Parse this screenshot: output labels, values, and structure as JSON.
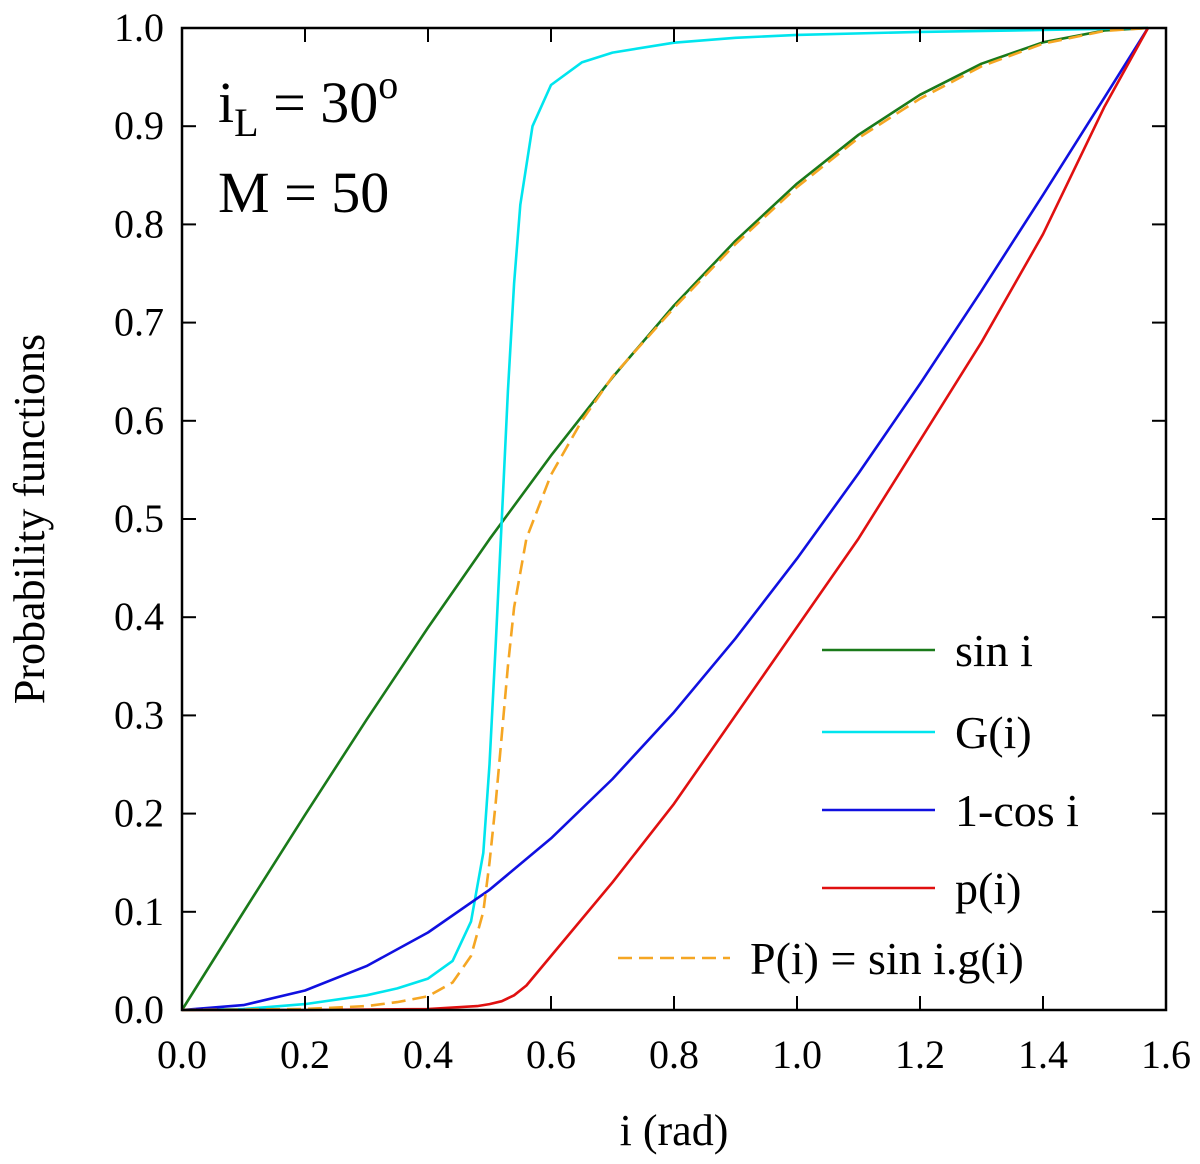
{
  "chart_data": {
    "type": "line",
    "xlabel": "i (rad)",
    "ylabel": "Probability functions",
    "xlim": [
      0.0,
      1.6
    ],
    "ylim": [
      0.0,
      1.0
    ],
    "xticks": [
      "0.0",
      "0.2",
      "0.4",
      "0.6",
      "0.8",
      "1.0",
      "1.2",
      "1.4",
      "1.6"
    ],
    "yticks": [
      "0.0",
      "0.1",
      "0.2",
      "0.3",
      "0.4",
      "0.5",
      "0.6",
      "0.7",
      "0.8",
      "0.9",
      "1.0"
    ],
    "grid": false,
    "legend_position": "bottom-right",
    "annotation": {
      "line1_main": "i",
      "line1_sub": "L",
      "line1_rest": " = 30",
      "line1_sup": "o",
      "line2": "M = 50"
    },
    "series": [
      {
        "name": "sin i",
        "color": "#1a7a1a",
        "dash": "solid",
        "x": [
          0.0,
          0.1,
          0.2,
          0.3,
          0.4,
          0.5,
          0.6,
          0.7,
          0.8,
          0.9,
          1.0,
          1.1,
          1.2,
          1.3,
          1.4,
          1.5,
          1.5708
        ],
        "y": [
          0.0,
          0.0998,
          0.1987,
          0.2955,
          0.3894,
          0.4794,
          0.5646,
          0.6442,
          0.7174,
          0.7833,
          0.8415,
          0.8912,
          0.932,
          0.9636,
          0.9854,
          0.9975,
          1.0
        ]
      },
      {
        "name": "G(i)",
        "color": "#00e5ee",
        "dash": "solid",
        "x": [
          0.0,
          0.1,
          0.2,
          0.3,
          0.35,
          0.4,
          0.44,
          0.47,
          0.49,
          0.5,
          0.51,
          0.52,
          0.53,
          0.54,
          0.55,
          0.57,
          0.6,
          0.65,
          0.7,
          0.8,
          0.9,
          1.0,
          1.2,
          1.4,
          1.5708
        ],
        "y": [
          0.0,
          0.001,
          0.006,
          0.015,
          0.022,
          0.032,
          0.05,
          0.09,
          0.16,
          0.25,
          0.37,
          0.5,
          0.63,
          0.74,
          0.82,
          0.9,
          0.942,
          0.965,
          0.975,
          0.985,
          0.99,
          0.993,
          0.996,
          0.998,
          1.0
        ]
      },
      {
        "name": "1-cos i",
        "color": "#1010e0",
        "dash": "solid",
        "x": [
          0.0,
          0.1,
          0.2,
          0.3,
          0.4,
          0.5,
          0.6,
          0.7,
          0.8,
          0.9,
          1.0,
          1.1,
          1.2,
          1.3,
          1.4,
          1.5,
          1.5708
        ],
        "y": [
          0.0,
          0.005,
          0.0199,
          0.0447,
          0.0789,
          0.1224,
          0.1747,
          0.2352,
          0.3033,
          0.3784,
          0.4597,
          0.5464,
          0.6376,
          0.7325,
          0.83,
          0.9293,
          1.0
        ]
      },
      {
        "name": "p(i)",
        "color": "#e01010",
        "dash": "solid",
        "x": [
          0.0,
          0.2,
          0.4,
          0.48,
          0.5,
          0.52,
          0.54,
          0.56,
          0.6,
          0.7,
          0.8,
          0.9,
          1.0,
          1.1,
          1.2,
          1.3,
          1.4,
          1.5,
          1.5708
        ],
        "y": [
          0.0,
          0.0,
          0.001,
          0.004,
          0.006,
          0.009,
          0.015,
          0.025,
          0.055,
          0.13,
          0.21,
          0.3,
          0.39,
          0.48,
          0.58,
          0.68,
          0.79,
          0.92,
          1.0
        ]
      },
      {
        "name": "P(i) = sin i.g(i)",
        "color": "#f5a623",
        "dash": "dashed",
        "x": [
          0.0,
          0.2,
          0.3,
          0.35,
          0.4,
          0.44,
          0.47,
          0.49,
          0.5,
          0.51,
          0.52,
          0.53,
          0.54,
          0.56,
          0.6,
          0.65,
          0.7,
          0.8,
          0.9,
          1.0,
          1.1,
          1.2,
          1.3,
          1.4,
          1.5,
          1.5708
        ],
        "y": [
          0.0,
          0.001,
          0.004,
          0.008,
          0.014,
          0.028,
          0.055,
          0.1,
          0.15,
          0.21,
          0.28,
          0.35,
          0.41,
          0.48,
          0.545,
          0.6,
          0.645,
          0.715,
          0.78,
          0.838,
          0.888,
          0.928,
          0.961,
          0.984,
          0.997,
          1.0
        ]
      }
    ]
  }
}
